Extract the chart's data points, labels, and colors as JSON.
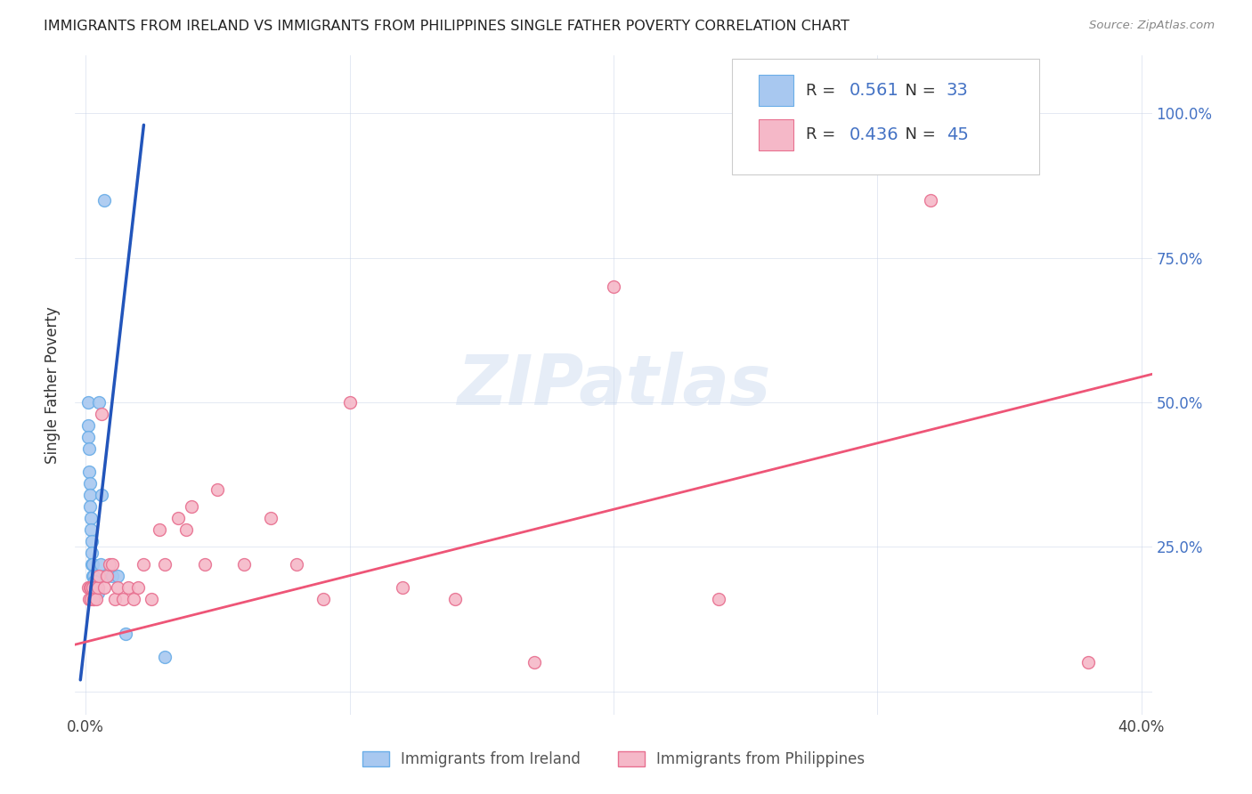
{
  "title": "IMMIGRANTS FROM IRELAND VS IMMIGRANTS FROM PHILIPPINES SINGLE FATHER POVERTY CORRELATION CHART",
  "source": "Source: ZipAtlas.com",
  "ylabel": "Single Father Poverty",
  "ireland_R": 0.561,
  "ireland_N": 33,
  "philippines_R": 0.436,
  "philippines_N": 45,
  "ireland_color": "#a8c8f0",
  "ireland_edge_color": "#6aaee8",
  "philippines_color": "#f5b8c8",
  "philippines_edge_color": "#e87090",
  "ireland_line_color": "#2255bb",
  "philippines_line_color": "#ee5577",
  "watermark": "ZIPatlas",
  "right_tick_color": "#4472c4",
  "ireland_x": [
    0.0008,
    0.0008,
    0.001,
    0.0012,
    0.0013,
    0.0015,
    0.0015,
    0.0016,
    0.0018,
    0.002,
    0.0022,
    0.0022,
    0.0024,
    0.0025,
    0.0026,
    0.0028,
    0.003,
    0.0032,
    0.0033,
    0.0035,
    0.0038,
    0.004,
    0.0042,
    0.0045,
    0.005,
    0.0055,
    0.006,
    0.007,
    0.008,
    0.01,
    0.012,
    0.015,
    0.03
  ],
  "ireland_y": [
    0.5,
    0.46,
    0.44,
    0.42,
    0.38,
    0.36,
    0.34,
    0.32,
    0.3,
    0.28,
    0.26,
    0.24,
    0.22,
    0.22,
    0.2,
    0.2,
    0.2,
    0.19,
    0.19,
    0.18,
    0.18,
    0.18,
    0.17,
    0.17,
    0.5,
    0.22,
    0.34,
    0.85,
    0.2,
    0.2,
    0.2,
    0.1,
    0.06
  ],
  "philippines_x": [
    0.001,
    0.0012,
    0.0015,
    0.0018,
    0.002,
    0.0025,
    0.0028,
    0.003,
    0.0035,
    0.004,
    0.0045,
    0.005,
    0.006,
    0.007,
    0.008,
    0.009,
    0.01,
    0.011,
    0.012,
    0.014,
    0.016,
    0.018,
    0.02,
    0.022,
    0.025,
    0.028,
    0.03,
    0.035,
    0.038,
    0.04,
    0.045,
    0.05,
    0.06,
    0.07,
    0.08,
    0.09,
    0.1,
    0.12,
    0.14,
    0.17,
    0.2,
    0.24,
    0.28,
    0.32,
    0.38
  ],
  "philippines_y": [
    0.18,
    0.16,
    0.18,
    0.16,
    0.18,
    0.18,
    0.16,
    0.16,
    0.18,
    0.16,
    0.18,
    0.2,
    0.48,
    0.18,
    0.2,
    0.22,
    0.22,
    0.16,
    0.18,
    0.16,
    0.18,
    0.16,
    0.18,
    0.22,
    0.16,
    0.28,
    0.22,
    0.3,
    0.28,
    0.32,
    0.22,
    0.35,
    0.22,
    0.3,
    0.22,
    0.16,
    0.5,
    0.18,
    0.16,
    0.05,
    0.7,
    0.16,
    1.0,
    0.85,
    0.05
  ],
  "xlim": [
    -0.004,
    0.404
  ],
  "ylim": [
    -0.04,
    1.1
  ],
  "x_ticks": [
    0.0,
    0.1,
    0.2,
    0.3,
    0.4
  ],
  "y_ticks": [
    0.0,
    0.25,
    0.5,
    0.75,
    1.0
  ],
  "ireland_line_x": [
    -0.002,
    0.022
  ],
  "ireland_line_y": [
    0.02,
    0.98
  ],
  "philippines_line_x": [
    -0.005,
    0.405
  ],
  "philippines_line_y": [
    0.08,
    0.55
  ]
}
